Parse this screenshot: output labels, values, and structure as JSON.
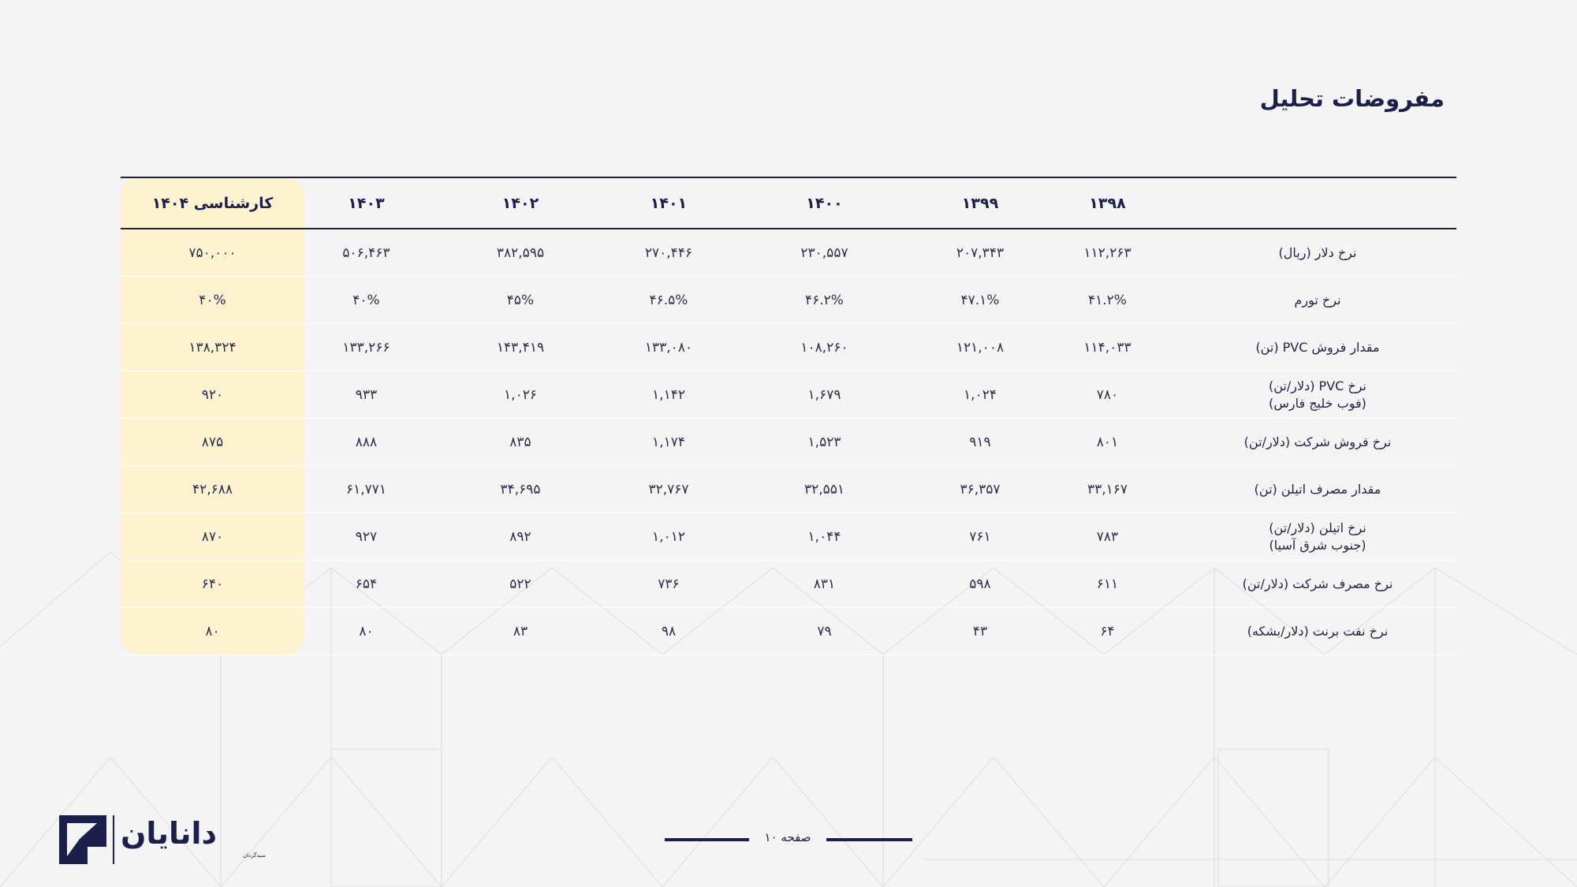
{
  "title": "مفروضات تحلیل",
  "table": {
    "headers": [
      "کارشناسی ۱۴۰۴",
      "۱۴۰۳",
      "۱۴۰۲",
      "۱۴۰۱",
      "۱۴۰۰",
      "۱۳۹۹",
      "۱۳۹۸",
      ""
    ],
    "rows": [
      {
        "label": "نرخ دلار (ریال)",
        "values": [
          "۷۵۰,۰۰۰",
          "۵۰۶,۴۶۳",
          "۳۸۲,۵۹۵",
          "۲۷۰,۴۴۶",
          "۲۳۰,۵۵۷",
          "۲۰۷,۳۴۳",
          "۱۱۲,۲۶۳"
        ]
      },
      {
        "label": "نرخ تورم",
        "values": [
          "۴۰%",
          "۴۰%",
          "۴۵%",
          "۴۶.۵%",
          "۴۶.۲%",
          "۴۷.۱%",
          "۴۱.۲%"
        ]
      },
      {
        "label": "مقدار فروش PVC (تن)",
        "values": [
          "۱۳۸,۳۲۴",
          "۱۳۳,۲۶۶",
          "۱۴۳,۴۱۹",
          "۱۳۳,۰۸۰",
          "۱۰۸,۲۶۰",
          "۱۲۱,۰۰۸",
          "۱۱۴,۰۳۳"
        ]
      },
      {
        "label": "نرخ PVC (دلار/تن)\n(فوب خلیج فارس)",
        "values": [
          "۹۲۰",
          "۹۳۳",
          "۱,۰۲۶",
          "۱,۱۴۲",
          "۱,۶۷۹",
          "۱,۰۲۴",
          "۷۸۰"
        ]
      },
      {
        "label": "نرخ فروش شرکت (دلار/تن)",
        "values": [
          "۸۷۵",
          "۸۸۸",
          "۸۳۵",
          "۱,۱۷۴",
          "۱,۵۲۳",
          "۹۱۹",
          "۸۰۱"
        ]
      },
      {
        "label": "مقدار مصرف اتیلن (تن)",
        "values": [
          "۴۲,۶۸۸",
          "۶۱,۷۷۱",
          "۳۴,۶۹۵",
          "۳۲,۷۶۷",
          "۳۲,۵۵۱",
          "۳۶,۳۵۷",
          "۳۳,۱۶۷"
        ]
      },
      {
        "label": "نرخ اتیلن (دلار/تن)\n(جنوب شرق آسیا)",
        "values": [
          "۸۷۰",
          "۹۲۷",
          "۸۹۲",
          "۱,۰۱۲",
          "۱,۰۴۴",
          "۷۶۱",
          "۷۸۳"
        ]
      },
      {
        "label": "نرخ مصرف شرکت (دلار/تن)",
        "values": [
          "۶۴۰",
          "۶۵۴",
          "۵۲۲",
          "۷۳۶",
          "۸۳۱",
          "۵۹۸",
          "۶۱۱"
        ]
      },
      {
        "label": "نرخ نفت برنت (دلار/بشکه)",
        "values": [
          "۸۰",
          "۸۰",
          "۸۳",
          "۹۸",
          "۷۹",
          "۴۳",
          "۶۴"
        ]
      }
    ]
  },
  "footer": {
    "page_label": "صفحه ۱۰",
    "logo_text": "دانایان",
    "logo_subtext": "سبدگردان"
  },
  "colors": {
    "primary": "#1b1f4a",
    "highlight": "#fdf3d0",
    "background": "#f4f4f5"
  },
  "icons": {
    "logo": "danayan-logo-mark"
  }
}
